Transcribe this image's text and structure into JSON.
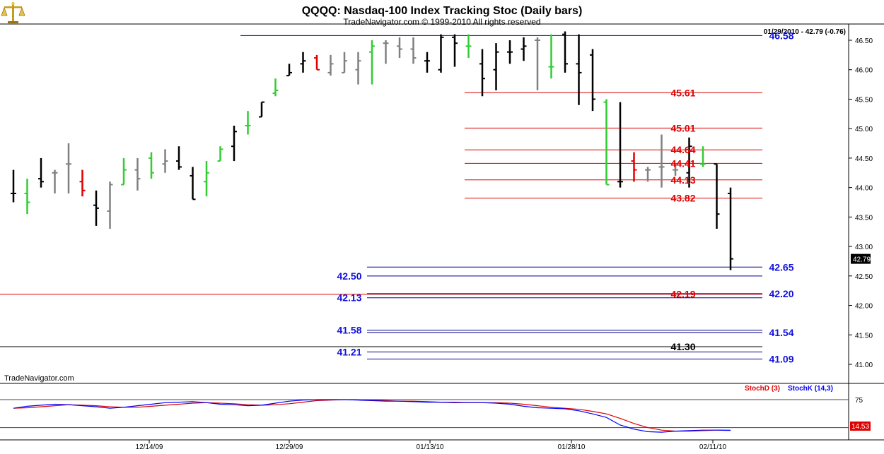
{
  "header": {
    "title": "QQQQ:  Nasdaq-100 Index Tracking Stoc  (Daily bars)",
    "subtitle": "TradeNavigator.com © 1999-2010 All rights reserved",
    "last_bar_info": "01/29/2010 - 42.79 (-0.76)",
    "watermark": "TradeNavigator.com"
  },
  "colors": {
    "bar_up": "#000000",
    "bar_gray": "#808080",
    "bar_green": "#33cc33",
    "bar_red": "#e00000",
    "line_red": "#dd0000",
    "line_blue": "#00008b",
    "label_blue": "#1111dd",
    "label_red": "#e00000",
    "stoch_d": "#dd0000",
    "stoch_k": "#0000ff"
  },
  "chart_data": {
    "type": "ohlc",
    "y_axis": {
      "min": 40.85,
      "max": 46.65,
      "ticks": [
        "46.50",
        "46.00",
        "45.50",
        "45.00",
        "44.50",
        "44.00",
        "43.50",
        "43.00",
        "42.50",
        "42.00",
        "41.50",
        "41.00"
      ],
      "current_price_label": "42.79"
    },
    "x_axis": {
      "tick_labels": [
        "12/14/09",
        "12/29/09",
        "01/13/10",
        "01/28/10",
        "02/11/10"
      ]
    },
    "bars": [
      {
        "o": 43.9,
        "h": 44.3,
        "l": 43.75,
        "c": 43.9,
        "color": "black"
      },
      {
        "o": 43.9,
        "h": 44.15,
        "l": 43.55,
        "c": 43.75,
        "color": "green"
      },
      {
        "o": 44.15,
        "h": 44.5,
        "l": 44.0,
        "c": 44.1,
        "color": "black"
      },
      {
        "o": 44.25,
        "h": 44.3,
        "l": 43.9,
        "c": 44.25,
        "color": "gray"
      },
      {
        "o": 44.4,
        "h": 44.75,
        "l": 43.9,
        "c": 44.4,
        "color": "gray"
      },
      {
        "o": 44.1,
        "h": 44.3,
        "l": 43.85,
        "c": 43.95,
        "color": "red"
      },
      {
        "o": 43.7,
        "h": 43.95,
        "l": 43.35,
        "c": 43.65,
        "color": "black"
      },
      {
        "o": 43.6,
        "h": 44.1,
        "l": 43.3,
        "c": 44.05,
        "color": "gray"
      },
      {
        "o": 44.05,
        "h": 44.5,
        "l": 44.05,
        "c": 44.3,
        "color": "green"
      },
      {
        "o": 44.3,
        "h": 44.5,
        "l": 43.95,
        "c": 44.15,
        "color": "gray"
      },
      {
        "o": 44.5,
        "h": 44.6,
        "l": 44.15,
        "c": 44.25,
        "color": "green"
      },
      {
        "o": 44.4,
        "h": 44.65,
        "l": 44.25,
        "c": 44.45,
        "color": "gray"
      },
      {
        "o": 44.45,
        "h": 44.7,
        "l": 44.3,
        "c": 44.35,
        "color": "black"
      },
      {
        "o": 44.2,
        "h": 44.35,
        "l": 43.8,
        "c": 43.8,
        "color": "black"
      },
      {
        "o": 44.1,
        "h": 44.45,
        "l": 43.85,
        "c": 44.25,
        "color": "green"
      },
      {
        "o": 44.45,
        "h": 44.7,
        "l": 44.45,
        "c": 44.65,
        "color": "green"
      },
      {
        "o": 44.7,
        "h": 45.05,
        "l": 44.45,
        "c": 44.95,
        "color": "black"
      },
      {
        "o": 45.05,
        "h": 45.3,
        "l": 44.9,
        "c": 45.05,
        "color": "green"
      },
      {
        "o": 45.2,
        "h": 45.45,
        "l": 45.2,
        "c": 45.45,
        "color": "black"
      },
      {
        "o": 45.6,
        "h": 45.85,
        "l": 45.55,
        "c": 45.65,
        "color": "green"
      },
      {
        "o": 45.9,
        "h": 46.1,
        "l": 45.9,
        "c": 45.95,
        "color": "black"
      },
      {
        "o": 46.1,
        "h": 46.3,
        "l": 45.95,
        "c": 46.15,
        "color": "black"
      },
      {
        "o": 46.2,
        "h": 46.25,
        "l": 46.0,
        "c": 46.0,
        "color": "red"
      },
      {
        "o": 45.95,
        "h": 46.25,
        "l": 45.9,
        "c": 46.1,
        "color": "gray"
      },
      {
        "o": 45.95,
        "h": 46.3,
        "l": 45.95,
        "c": 46.15,
        "color": "gray"
      },
      {
        "o": 46.0,
        "h": 46.3,
        "l": 45.75,
        "c": 46.15,
        "color": "gray"
      },
      {
        "o": 46.3,
        "h": 46.5,
        "l": 45.75,
        "c": 46.4,
        "color": "green"
      },
      {
        "o": 46.45,
        "h": 46.5,
        "l": 46.1,
        "c": 46.45,
        "color": "gray"
      },
      {
        "o": 46.4,
        "h": 46.55,
        "l": 46.2,
        "c": 46.35,
        "color": "gray"
      },
      {
        "o": 46.35,
        "h": 46.55,
        "l": 46.1,
        "c": 46.2,
        "color": "gray"
      },
      {
        "o": 46.15,
        "h": 46.3,
        "l": 45.95,
        "c": 46.15,
        "color": "black"
      },
      {
        "o": 46.0,
        "h": 46.6,
        "l": 45.95,
        "c": 46.55,
        "color": "black"
      },
      {
        "o": 46.55,
        "h": 46.6,
        "l": 46.05,
        "c": 46.45,
        "color": "black"
      },
      {
        "o": 46.4,
        "h": 46.6,
        "l": 46.2,
        "c": 46.4,
        "color": "green"
      },
      {
        "o": 46.1,
        "h": 46.35,
        "l": 45.55,
        "c": 45.85,
        "color": "black"
      },
      {
        "o": 46.0,
        "h": 46.45,
        "l": 45.65,
        "c": 46.3,
        "color": "black"
      },
      {
        "o": 46.3,
        "h": 46.5,
        "l": 46.1,
        "c": 46.3,
        "color": "black"
      },
      {
        "o": 46.35,
        "h": 46.55,
        "l": 46.15,
        "c": 46.4,
        "color": "black"
      },
      {
        "o": 46.5,
        "h": 46.55,
        "l": 45.65,
        "c": 46.5,
        "color": "gray"
      },
      {
        "o": 46.05,
        "h": 46.6,
        "l": 45.85,
        "c": 46.05,
        "color": "green"
      },
      {
        "o": 46.6,
        "h": 46.65,
        "l": 45.95,
        "c": 46.1,
        "color": "black"
      },
      {
        "o": 46.1,
        "h": 46.6,
        "l": 45.4,
        "c": 45.95,
        "color": "black"
      },
      {
        "o": 46.25,
        "h": 46.35,
        "l": 45.3,
        "c": 45.5,
        "color": "black"
      },
      {
        "o": 45.45,
        "h": 45.5,
        "l": 44.05,
        "c": 44.05,
        "color": "green"
      },
      {
        "o": 44.1,
        "h": 45.45,
        "l": 44.0,
        "c": 44.1,
        "color": "black"
      },
      {
        "o": 44.45,
        "h": 44.6,
        "l": 44.1,
        "c": 44.3,
        "color": "red"
      },
      {
        "o": 44.3,
        "h": 44.35,
        "l": 44.1,
        "c": 44.3,
        "color": "gray"
      },
      {
        "o": 44.35,
        "h": 44.9,
        "l": 44.0,
        "c": 44.35,
        "color": "gray"
      },
      {
        "o": 44.3,
        "h": 44.4,
        "l": 44.2,
        "c": 44.3,
        "color": "gray"
      },
      {
        "o": 44.25,
        "h": 44.85,
        "l": 44.0,
        "c": 44.7,
        "color": "black"
      },
      {
        "o": 44.4,
        "h": 44.7,
        "l": 44.35,
        "c": 44.4,
        "color": "green"
      },
      {
        "o": 44.4,
        "h": 44.4,
        "l": 43.3,
        "c": 43.55,
        "color": "black"
      },
      {
        "o": 43.9,
        "h": 44.0,
        "l": 42.6,
        "c": 42.79,
        "color": "black"
      }
    ],
    "levels": [
      {
        "value": 46.58,
        "color": "blue",
        "label": "46.58",
        "side": "right",
        "extent": "upper"
      },
      {
        "value": 45.61,
        "color": "red",
        "label": "45.61",
        "side": "right",
        "extent": "mid"
      },
      {
        "value": 45.01,
        "color": "red",
        "label": "45.01",
        "side": "right",
        "extent": "mid"
      },
      {
        "value": 44.64,
        "color": "red",
        "label": "44.64",
        "side": "right",
        "extent": "mid"
      },
      {
        "value": 44.41,
        "color": "red",
        "label": "44.41",
        "side": "right",
        "extent": "mid"
      },
      {
        "value": 44.13,
        "color": "red",
        "label": "44.13",
        "side": "right",
        "extent": "mid"
      },
      {
        "value": 43.82,
        "color": "red",
        "label": "43.82",
        "side": "right",
        "extent": "mid"
      },
      {
        "value": 42.65,
        "color": "blue",
        "label": "42.65",
        "side": "right",
        "extent": "low"
      },
      {
        "value": 42.5,
        "color": "blue",
        "label": "42.50",
        "side": "left",
        "extent": "low"
      },
      {
        "value": 42.19,
        "color": "red",
        "label": "42.19",
        "side": "mid",
        "extent": "full"
      },
      {
        "value": 42.2,
        "color": "blue",
        "label": "42.20",
        "side": "right",
        "extent": "low"
      },
      {
        "value": 42.13,
        "color": "blue",
        "label": "42.13",
        "side": "left",
        "extent": "low"
      },
      {
        "value": 41.58,
        "color": "blue",
        "label": "41.58",
        "side": "left",
        "extent": "low"
      },
      {
        "value": 41.54,
        "color": "blue",
        "label": "41.54",
        "side": "right",
        "extent": "low"
      },
      {
        "value": 41.3,
        "color": "black",
        "label": "41.30",
        "side": "mid",
        "extent": "full"
      },
      {
        "value": 41.21,
        "color": "blue",
        "label": "41.21",
        "side": "left",
        "extent": "low"
      },
      {
        "value": 41.09,
        "color": "blue",
        "label": "41.09",
        "side": "right",
        "extent": "low"
      }
    ],
    "stochastic": {
      "legend_d": "StochD (3)",
      "legend_k": "StochK (14,3)",
      "level_label": "75",
      "last_value_label": "14.53",
      "levels": [
        75,
        20
      ],
      "stoch_k": [
        58,
        62,
        64,
        66,
        65,
        63,
        61,
        58,
        60,
        63,
        66,
        69,
        70,
        71,
        69,
        66,
        65,
        63,
        64,
        68,
        72,
        74,
        75,
        75,
        75,
        74,
        73,
        72,
        72,
        71,
        70,
        70,
        69,
        69,
        69,
        68,
        66,
        62,
        59,
        58,
        57,
        53,
        47,
        40,
        25,
        17,
        12,
        11,
        13,
        14,
        15,
        15,
        14.5
      ],
      "stoch_d": [
        58,
        59,
        61,
        63,
        65,
        64,
        63,
        61,
        60,
        60,
        62,
        64,
        66,
        68,
        69,
        68,
        67,
        65,
        64,
        65,
        67,
        70,
        73,
        74,
        75,
        75,
        74,
        73,
        72,
        72,
        71,
        70,
        70,
        69,
        69,
        69,
        68,
        66,
        63,
        60,
        58,
        56,
        52,
        47,
        38,
        28,
        20,
        15,
        13,
        13,
        14,
        15,
        15
      ]
    }
  }
}
